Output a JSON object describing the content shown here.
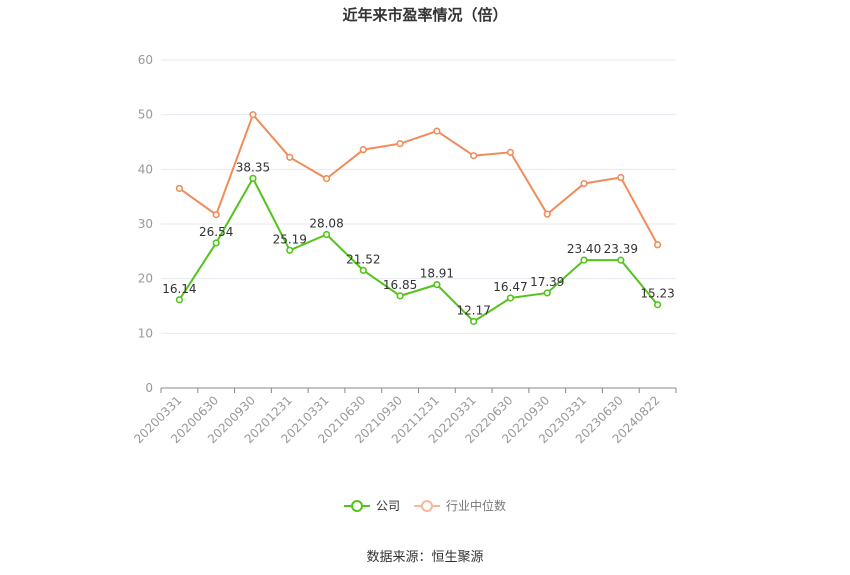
{
  "title": "近年来市盈率情况（倍）",
  "source": "数据来源：恒生聚源",
  "chart_data": {
    "type": "line",
    "categories": [
      "20200331",
      "20200630",
      "20200930",
      "20201231",
      "20210331",
      "20210630",
      "20210930",
      "20211231",
      "20220331",
      "20220630",
      "20220930",
      "20230331",
      "20230630",
      "20240822"
    ],
    "ylim": [
      0,
      60
    ],
    "yticks": [
      0,
      10,
      20,
      30,
      40,
      50,
      60
    ],
    "grid": true,
    "legend_position": "bottom",
    "series": [
      {
        "name": "公司",
        "color": "#52c41a",
        "labeled": true,
        "values": [
          16.14,
          26.54,
          38.35,
          25.19,
          28.08,
          21.52,
          16.85,
          18.91,
          12.17,
          16.47,
          17.39,
          23.4,
          23.39,
          15.23
        ],
        "labels": [
          "16.14",
          "26.54",
          "38.35",
          "25.19",
          "28.08",
          "21.52",
          "16.85",
          "18.91",
          "12.17",
          "16.47",
          "17.39",
          "23.40",
          "23.39",
          "15.23"
        ]
      },
      {
        "name": "行业中位数",
        "color": "#f08c5a",
        "labeled": false,
        "values": [
          36.5,
          31.7,
          50.0,
          42.2,
          38.3,
          43.6,
          44.7,
          47.0,
          42.5,
          43.1,
          31.8,
          37.4,
          38.5,
          26.2
        ]
      }
    ]
  }
}
